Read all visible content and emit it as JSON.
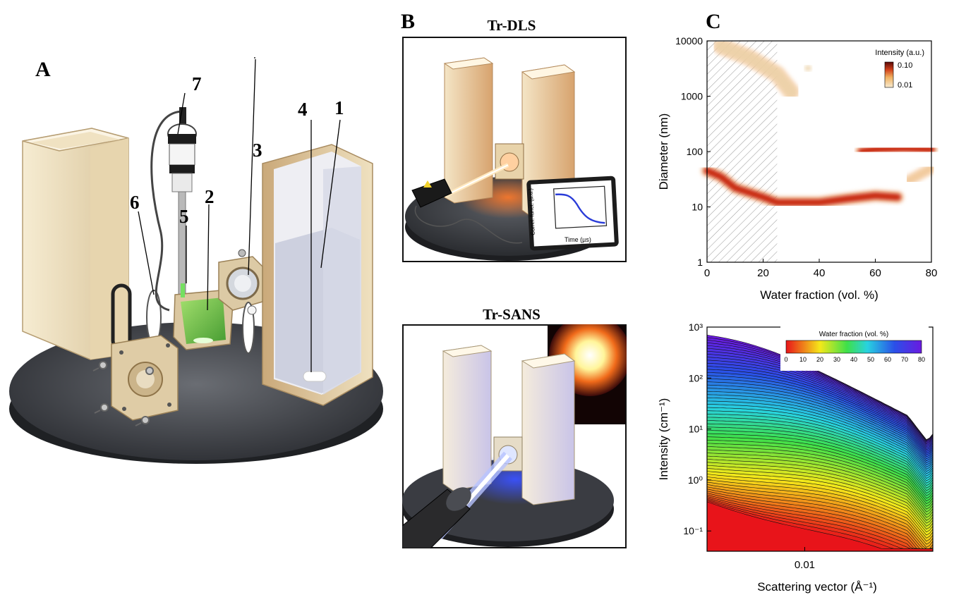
{
  "panel_a": {
    "letter": "A",
    "callouts": [
      "7",
      "4",
      "1",
      "3",
      "6",
      "5",
      "2"
    ]
  },
  "panel_b": {
    "letter": "B",
    "dls_title": "Tr-DLS",
    "sans_title": "Tr-SANS",
    "inset": {
      "ylabel": "Correl. funct. (a.u.)",
      "xlabel": "Time (µs)"
    }
  },
  "panel_c": {
    "letter": "C"
  },
  "chart_data": [
    {
      "type": "heatmap",
      "xlabel": "Water fraction (vol. %)",
      "ylabel": "Diameter (nm)",
      "xlim": [
        0,
        80
      ],
      "ylim": [
        1,
        10000
      ],
      "yscale": "log",
      "x_ticks": [
        "0",
        "20",
        "40",
        "60",
        "80"
      ],
      "y_ticks": [
        "1",
        "10",
        "100",
        "1000",
        "10000"
      ],
      "colorbar": {
        "title": "Intensity (a.u.)",
        "ticks": [
          "0.10",
          "0.01"
        ],
        "placement": "top-right"
      },
      "hatched_region": [
        0,
        25
      ],
      "bands": [
        {
          "x": [
            0,
            5,
            10,
            20,
            25,
            40,
            50,
            60,
            68
          ],
          "y": [
            45,
            35,
            22,
            15,
            12,
            12,
            14,
            16,
            15
          ]
        },
        {
          "x": [
            55,
            60,
            70,
            80
          ],
          "y": [
            100,
            110,
            115,
            110
          ]
        },
        {
          "x": [
            72,
            80
          ],
          "y": [
            30,
            50
          ]
        },
        {
          "x": [
            5,
            15,
            25,
            30
          ],
          "y": [
            8000,
            5000,
            2500,
            1200
          ]
        },
        {
          "x": [
            36
          ],
          "y": [
            3200
          ]
        }
      ]
    },
    {
      "type": "line",
      "xlabel": "Scattering vector (Å⁻¹)",
      "ylabel": "Intensity (cm⁻¹)",
      "xscale": "log",
      "yscale": "log",
      "xlim": [
        0.0024,
        0.065
      ],
      "ylim": [
        0.04,
        1000
      ],
      "x_ticks": [
        "0.01"
      ],
      "y_ticks": [
        "10⁻¹",
        "10⁰",
        "10¹",
        "10²",
        "10³"
      ],
      "colorbar": {
        "title": "Water fraction (vol. %)",
        "ticks": [
          "0",
          "10",
          "20",
          "30",
          "40",
          "50",
          "60",
          "70",
          "80"
        ],
        "placement": "top-right"
      },
      "series_count": 60,
      "water_fraction_range": [
        0,
        80
      ]
    }
  ]
}
